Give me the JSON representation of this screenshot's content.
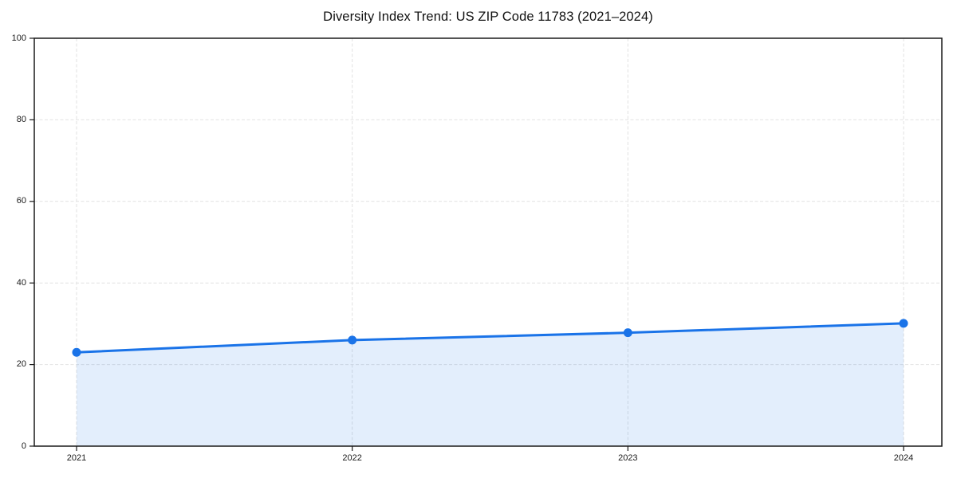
{
  "title": "Diversity Index Trend: US ZIP Code 11783 (2021–2024)",
  "chart_data": {
    "type": "area",
    "title": "Diversity Index Trend: US ZIP Code 11783 (2021–2024)",
    "x": [
      "2021",
      "2022",
      "2023",
      "2024"
    ],
    "series": [
      {
        "name": "Diversity Index",
        "values": [
          23,
          26,
          27.8,
          30.1
        ]
      }
    ],
    "xlabel": "",
    "ylabel": "",
    "ylim": [
      0,
      100
    ],
    "yticks": [
      0,
      20,
      40,
      60,
      80,
      100
    ],
    "grid": "dashed horizontal and vertical gridlines",
    "legend_position": "none",
    "colors": {
      "line": "#1a73e8",
      "marker": "#1a73e8",
      "area_fill": "rgba(26,115,232,0.12)",
      "gridline": "#e2e2e2",
      "spine": "#1a1a1a",
      "tick_label": "#1a1a1a",
      "title": "#111111",
      "background": "#ffffff"
    }
  }
}
